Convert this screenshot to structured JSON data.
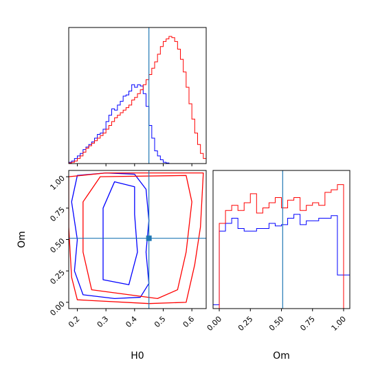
{
  "chart_data": [
    {
      "type": "histogram",
      "panel": "H0 marginal",
      "xlabel": "",
      "ylabel": "",
      "xlim": [
        0.17,
        0.65
      ],
      "ylim": [
        0,
        1.0
      ],
      "bin_edges": [
        0.17,
        0.18,
        0.19,
        0.2,
        0.21,
        0.22,
        0.23,
        0.24,
        0.25,
        0.26,
        0.27,
        0.28,
        0.29,
        0.3,
        0.31,
        0.32,
        0.33,
        0.34,
        0.35,
        0.36,
        0.37,
        0.38,
        0.39,
        0.4,
        0.41,
        0.42,
        0.43,
        0.44,
        0.45,
        0.46,
        0.47,
        0.48,
        0.49,
        0.5,
        0.51,
        0.52,
        0.53,
        0.54,
        0.55,
        0.56,
        0.57,
        0.58,
        0.59,
        0.6,
        0.61,
        0.62,
        0.63,
        0.64,
        0.65
      ],
      "series": [
        {
          "color": "#0000ff",
          "values": [
            0.01,
            0.02,
            0.04,
            0.06,
            0.08,
            0.11,
            0.13,
            0.15,
            0.17,
            0.2,
            0.23,
            0.24,
            0.27,
            0.33,
            0.38,
            0.43,
            0.42,
            0.46,
            0.49,
            0.53,
            0.54,
            0.57,
            0.62,
            0.6,
            0.62,
            0.61,
            0.55,
            0.45,
            0.3,
            0.2,
            0.1,
            0.06,
            0.03,
            0.01,
            0.005,
            0,
            0,
            0,
            0,
            0,
            0,
            0,
            0,
            0,
            0,
            0,
            0,
            0
          ]
        },
        {
          "color": "#ff0000",
          "values": [
            0.005,
            0.01,
            0.02,
            0.04,
            0.06,
            0.09,
            0.12,
            0.14,
            0.16,
            0.18,
            0.2,
            0.22,
            0.24,
            0.27,
            0.3,
            0.33,
            0.36,
            0.38,
            0.4,
            0.42,
            0.44,
            0.46,
            0.5,
            0.52,
            0.55,
            0.58,
            0.62,
            0.66,
            0.7,
            0.75,
            0.8,
            0.86,
            0.92,
            0.96,
            0.98,
            1.0,
            0.99,
            0.96,
            0.9,
            0.82,
            0.72,
            0.6,
            0.47,
            0.35,
            0.24,
            0.15,
            0.08,
            0.04
          ]
        }
      ],
      "truth_line": 0.45,
      "grid": false
    },
    {
      "type": "contour",
      "panel": "Om vs H0",
      "xlabel": "H0",
      "ylabel": "Om",
      "xlim": [
        0.17,
        0.65
      ],
      "ylim": [
        -0.05,
        1.05
      ],
      "x_ticks": [
        "0.2",
        "0.3",
        "0.4",
        "0.5",
        "0.6"
      ],
      "y_ticks": [
        "0.00",
        "0.25",
        "0.50",
        "0.75",
        "1.00"
      ],
      "series": [
        {
          "color": "#0000ff",
          "levels": [
            [
              [
                0.22,
                0.06
              ],
              [
                0.33,
                0.03
              ],
              [
                0.42,
                0.04
              ],
              [
                0.45,
                0.15
              ],
              [
                0.44,
                0.4
              ],
              [
                0.45,
                0.65
              ],
              [
                0.44,
                0.9
              ],
              [
                0.4,
                1.02
              ],
              [
                0.3,
                1.03
              ],
              [
                0.2,
                1.01
              ],
              [
                0.18,
                0.8
              ],
              [
                0.2,
                0.5
              ],
              [
                0.19,
                0.25
              ],
              [
                0.22,
                0.06
              ]
            ],
            [
              [
                0.29,
                0.18
              ],
              [
                0.38,
                0.14
              ],
              [
                0.41,
                0.4
              ],
              [
                0.4,
                0.7
              ],
              [
                0.4,
                0.92
              ],
              [
                0.33,
                0.96
              ],
              [
                0.29,
                0.75
              ],
              [
                0.29,
                0.45
              ],
              [
                0.29,
                0.18
              ]
            ]
          ]
        },
        {
          "color": "#ff0000",
          "levels": [
            [
              [
                0.2,
                0.02
              ],
              [
                0.45,
                -0.01
              ],
              [
                0.58,
                0.0
              ],
              [
                0.61,
                0.3
              ],
              [
                0.63,
                0.6
              ],
              [
                0.64,
                1.03
              ],
              [
                0.3,
                1.03
              ],
              [
                0.17,
                1.0
              ],
              [
                0.17,
                0.6
              ],
              [
                0.18,
                0.2
              ],
              [
                0.2,
                0.02
              ]
            ],
            [
              [
                0.25,
                0.1
              ],
              [
                0.48,
                0.03
              ],
              [
                0.55,
                0.1
              ],
              [
                0.58,
                0.4
              ],
              [
                0.6,
                0.8
              ],
              [
                0.58,
                1.01
              ],
              [
                0.28,
                1.0
              ],
              [
                0.22,
                0.8
              ],
              [
                0.22,
                0.4
              ],
              [
                0.25,
                0.1
              ]
            ]
          ]
        }
      ],
      "truth_point": [
        0.45,
        0.51
      ]
    },
    {
      "type": "histogram",
      "panel": "Om marginal",
      "xlabel": "Om",
      "ylabel": "",
      "xlim": [
        -0.05,
        1.05
      ],
      "ylim": [
        0,
        1.0
      ],
      "x_ticks": [
        "0.00",
        "0.25",
        "0.50",
        "0.75",
        "1.00"
      ],
      "bin_edges": [
        -0.05,
        0.0,
        0.05,
        0.1,
        0.15,
        0.2,
        0.25,
        0.3,
        0.35,
        0.4,
        0.45,
        0.5,
        0.55,
        0.6,
        0.65,
        0.7,
        0.75,
        0.8,
        0.85,
        0.9,
        0.95,
        1.0,
        1.05
      ],
      "series": [
        {
          "color": "#0000ff",
          "values": [
            0.03,
            0.6,
            0.66,
            0.7,
            0.62,
            0.6,
            0.6,
            0.62,
            0.62,
            0.66,
            0.64,
            0.65,
            0.7,
            0.73,
            0.65,
            0.68,
            0.68,
            0.7,
            0.7,
            0.72,
            0.26,
            0.26
          ]
        },
        {
          "color": "#ff0000",
          "values": [
            0.0,
            0.66,
            0.76,
            0.8,
            0.76,
            0.82,
            0.89,
            0.74,
            0.78,
            0.82,
            0.86,
            0.78,
            0.84,
            0.86,
            0.76,
            0.8,
            0.82,
            0.8,
            0.9,
            0.92,
            0.96,
            0.0
          ]
        }
      ],
      "truth_line": 0.51,
      "grid": false
    }
  ]
}
